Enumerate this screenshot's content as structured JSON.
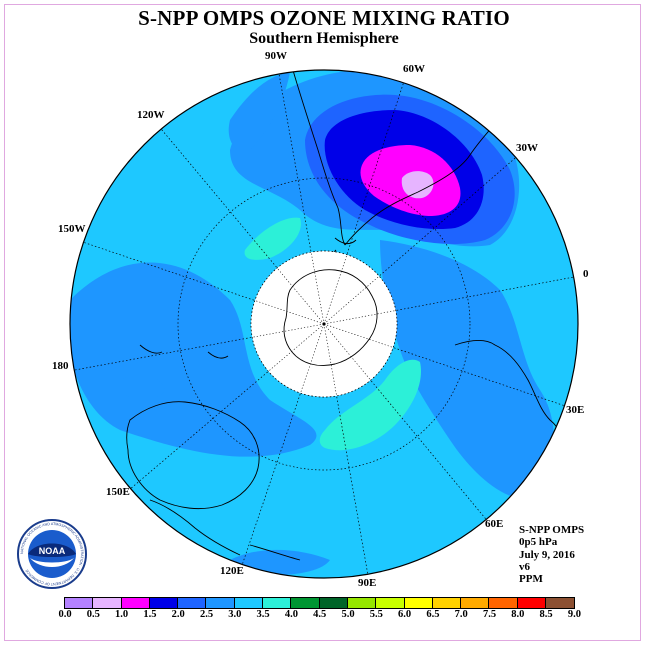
{
  "header": {
    "title": "S-NPP OMPS OZONE MIXING RATIO",
    "subtitle": "Southern Hemisphere"
  },
  "map": {
    "projection": "south polar stereographic",
    "longitude_labels": [
      "90W",
      "60W",
      "30W",
      "120W",
      "150W",
      "0",
      "180",
      "30E",
      "150E",
      "60E",
      "120E",
      "90E"
    ],
    "colors": {
      "background_field": "#1ec8ff",
      "level_2_5_3_0": "#1e96ff",
      "level_3_5_4_0": "#2cf0d8",
      "level_2_0_2_5": "#1e64ff",
      "level_1_5_2_0": "#0000e8",
      "level_1_0_1_5": "#ff00ff",
      "level_0_5_1_0": "#e6b4ff",
      "polar_mask": "#ffffff"
    }
  },
  "info": {
    "instrument": "S-NPP OMPS",
    "level": "0p5 hPa",
    "date": "July 9, 2016",
    "version": "v6",
    "units": "PPM"
  },
  "colorbar": {
    "colors": [
      "#b482ff",
      "#e6b4ff",
      "#ff00ff",
      "#0000e8",
      "#1e64ff",
      "#1e96ff",
      "#1ec8ff",
      "#2cf0d8",
      "#009632",
      "#006428",
      "#96e600",
      "#c8ff00",
      "#ffff00",
      "#ffd200",
      "#ffaa00",
      "#ff6400",
      "#ff0000",
      "#8c5032"
    ],
    "tick_labels": [
      "0.0",
      "0.5",
      "1.0",
      "1.5",
      "2.0",
      "2.5",
      "3.0",
      "3.5",
      "4.0",
      "4.5",
      "5.0",
      "5.5",
      "6.0",
      "6.5",
      "7.0",
      "7.5",
      "8.0",
      "8.5",
      "9.0"
    ]
  },
  "logo": {
    "text": "NOAA",
    "ring_text": "NATIONAL OCEANIC AND ATMOSPHERIC ADMINISTRATION · U.S. DEPARTMENT OF COMMERCE"
  }
}
